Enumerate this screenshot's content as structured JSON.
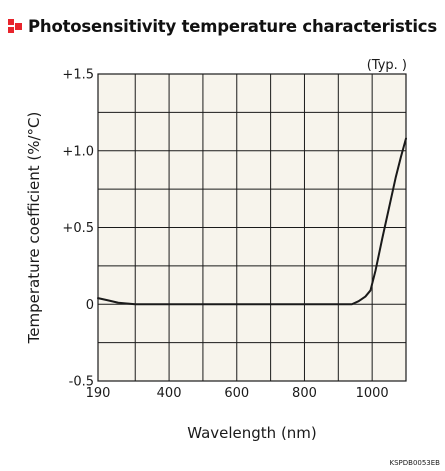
{
  "chart_data": {
    "type": "line",
    "title": "Photosensitivity temperature characteristics",
    "annotation": "(Typ. )",
    "xlabel": "Wavelength (nm)",
    "ylabel": "Temperature coefficient (%/°C)",
    "code": "KSPDB0053EB",
    "xlim": [
      190,
      1100
    ],
    "ylim": [
      -0.5,
      1.5
    ],
    "x_ticks": [
      190,
      400,
      600,
      800,
      1000
    ],
    "x_tick_labels": [
      "190",
      "400",
      "600",
      "800",
      "1000"
    ],
    "y_ticks": [
      1.5,
      1.0,
      0.5,
      0,
      -0.5
    ],
    "y_tick_labels": [
      "+1.5",
      "+1.0",
      "+0.5",
      "0",
      "-0.5"
    ],
    "x_grid": [
      300,
      400,
      500,
      600,
      700,
      800,
      900,
      1000
    ],
    "y_grid": [
      -0.25,
      0,
      0.25,
      0.5,
      0.75,
      1.0,
      1.25
    ],
    "grid": true,
    "colors": {
      "plot_background": "#f7f4ec",
      "line": "#1a1a1a",
      "accent": "#e8242c"
    },
    "series": [
      {
        "x": [
          190,
          220,
          250,
          300,
          400,
          500,
          600,
          700,
          800,
          900,
          940,
          960,
          980,
          995,
          1010,
          1030,
          1050,
          1070,
          1085,
          1100
        ],
        "y": [
          0.04,
          0.025,
          0.01,
          0.0,
          0.0,
          0.0,
          0.0,
          0.0,
          0.0,
          0.0,
          0.0,
          0.02,
          0.05,
          0.09,
          0.22,
          0.43,
          0.63,
          0.83,
          0.96,
          1.08
        ]
      }
    ]
  }
}
